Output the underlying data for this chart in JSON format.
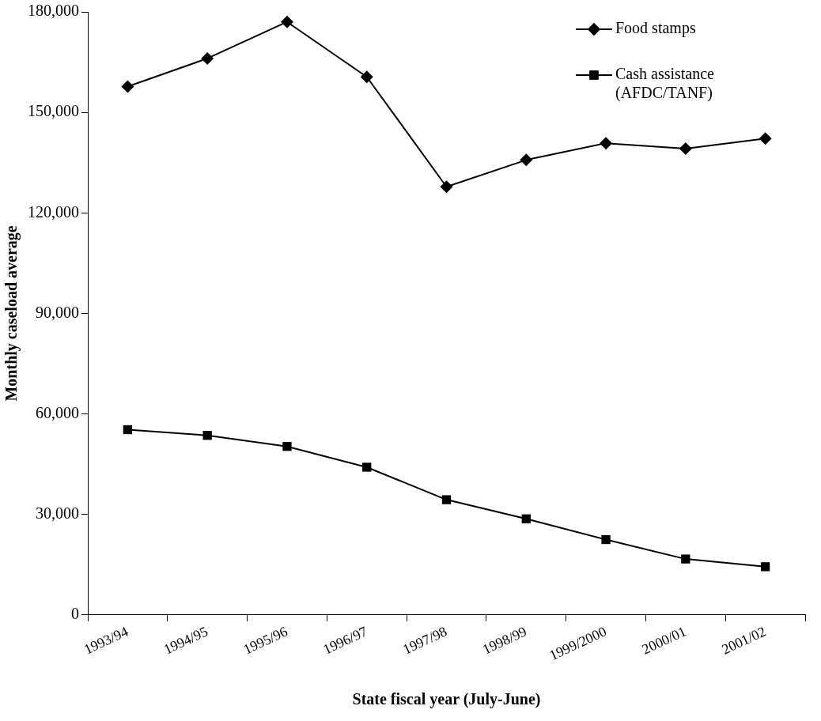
{
  "chart_data": {
    "type": "line",
    "xlabel": "State fiscal year (July-June)",
    "ylabel": "Monthly caseload average",
    "categories": [
      "1993/94",
      "1994/95",
      "1995/96",
      "1996/97",
      "1997/98",
      "1998/99",
      "1999/2000",
      "2000/01",
      "2001/02"
    ],
    "series": [
      {
        "name": "Food stamps",
        "color": "#000000",
        "marker": "diamond",
        "values": [
          157700,
          166100,
          177000,
          160600,
          127800,
          135800,
          140800,
          139200,
          142200
        ]
      },
      {
        "name": "Cash assistance (AFDC/TANF)",
        "color": "#000000",
        "marker": "square",
        "values": [
          55300,
          53600,
          50300,
          44100,
          34400,
          28700,
          22500,
          16700,
          14400
        ]
      }
    ],
    "ylim": [
      0,
      180000
    ],
    "yticks": [
      {
        "value": 0,
        "label": "0"
      },
      {
        "value": 30000,
        "label": "30,000"
      },
      {
        "value": 60000,
        "label": "60,000"
      },
      {
        "value": 90000,
        "label": "90,000"
      },
      {
        "value": 120000,
        "label": "120,000"
      },
      {
        "value": 150000,
        "label": "150,000"
      },
      {
        "value": 180000,
        "label": "180,000"
      }
    ],
    "grid": false,
    "legend": "top right",
    "line_style": "solid"
  }
}
